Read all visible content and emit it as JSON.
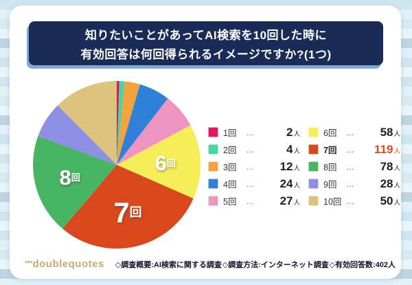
{
  "title": {
    "line1": "知りたいことがあってAI検索を10回した時に",
    "line2": "有効回答は何回得られるイメージですか?(1つ)"
  },
  "chart_data": {
    "type": "pie",
    "title": "知りたいことがあってAI検索を10回した時に有効回答は何回得られるイメージですか?(1つ)",
    "start_angle_deg": 0,
    "clockwise": true,
    "total": 402,
    "unit": "人",
    "count_unit": "回",
    "legend_position": "right",
    "value_emphasis_color": "#dd4a1e",
    "slices": [
      {
        "label": "1回",
        "value": 2,
        "color": "#e0175a",
        "pie_label": false,
        "emphasis": false
      },
      {
        "label": "2回",
        "value": 4,
        "color": "#47d6a1",
        "pie_label": false,
        "emphasis": false
      },
      {
        "label": "3回",
        "value": 12,
        "color": "#f2a23e",
        "pie_label": false,
        "emphasis": false
      },
      {
        "label": "4回",
        "value": 24,
        "color": "#2f80d9",
        "pie_label": false,
        "emphasis": false
      },
      {
        "label": "5回",
        "value": 27,
        "color": "#ef93c1",
        "pie_label": false,
        "emphasis": false
      },
      {
        "label": "6回",
        "value": 58,
        "color": "#f5ee58",
        "pie_label": true,
        "emphasis": false
      },
      {
        "label": "7回",
        "value": 119,
        "color": "#d9481c",
        "pie_label": true,
        "emphasis": true
      },
      {
        "label": "8回",
        "value": 78,
        "color": "#48b563",
        "pie_label": true,
        "emphasis": false
      },
      {
        "label": "9回",
        "value": 28,
        "color": "#8c8fe4",
        "pie_label": false,
        "emphasis": false
      },
      {
        "label": "10回",
        "value": 50,
        "color": "#dcc37d",
        "pie_label": false,
        "emphasis": false
      }
    ]
  },
  "legend": {
    "dots": "…"
  },
  "footer": {
    "logo_quotes": "″″",
    "logo_text": "doublequotes",
    "items": [
      "◇調査概要:AI検索に関する調査",
      "◇調査方法:インターネット調査",
      "◇有効回答数:402人"
    ]
  }
}
